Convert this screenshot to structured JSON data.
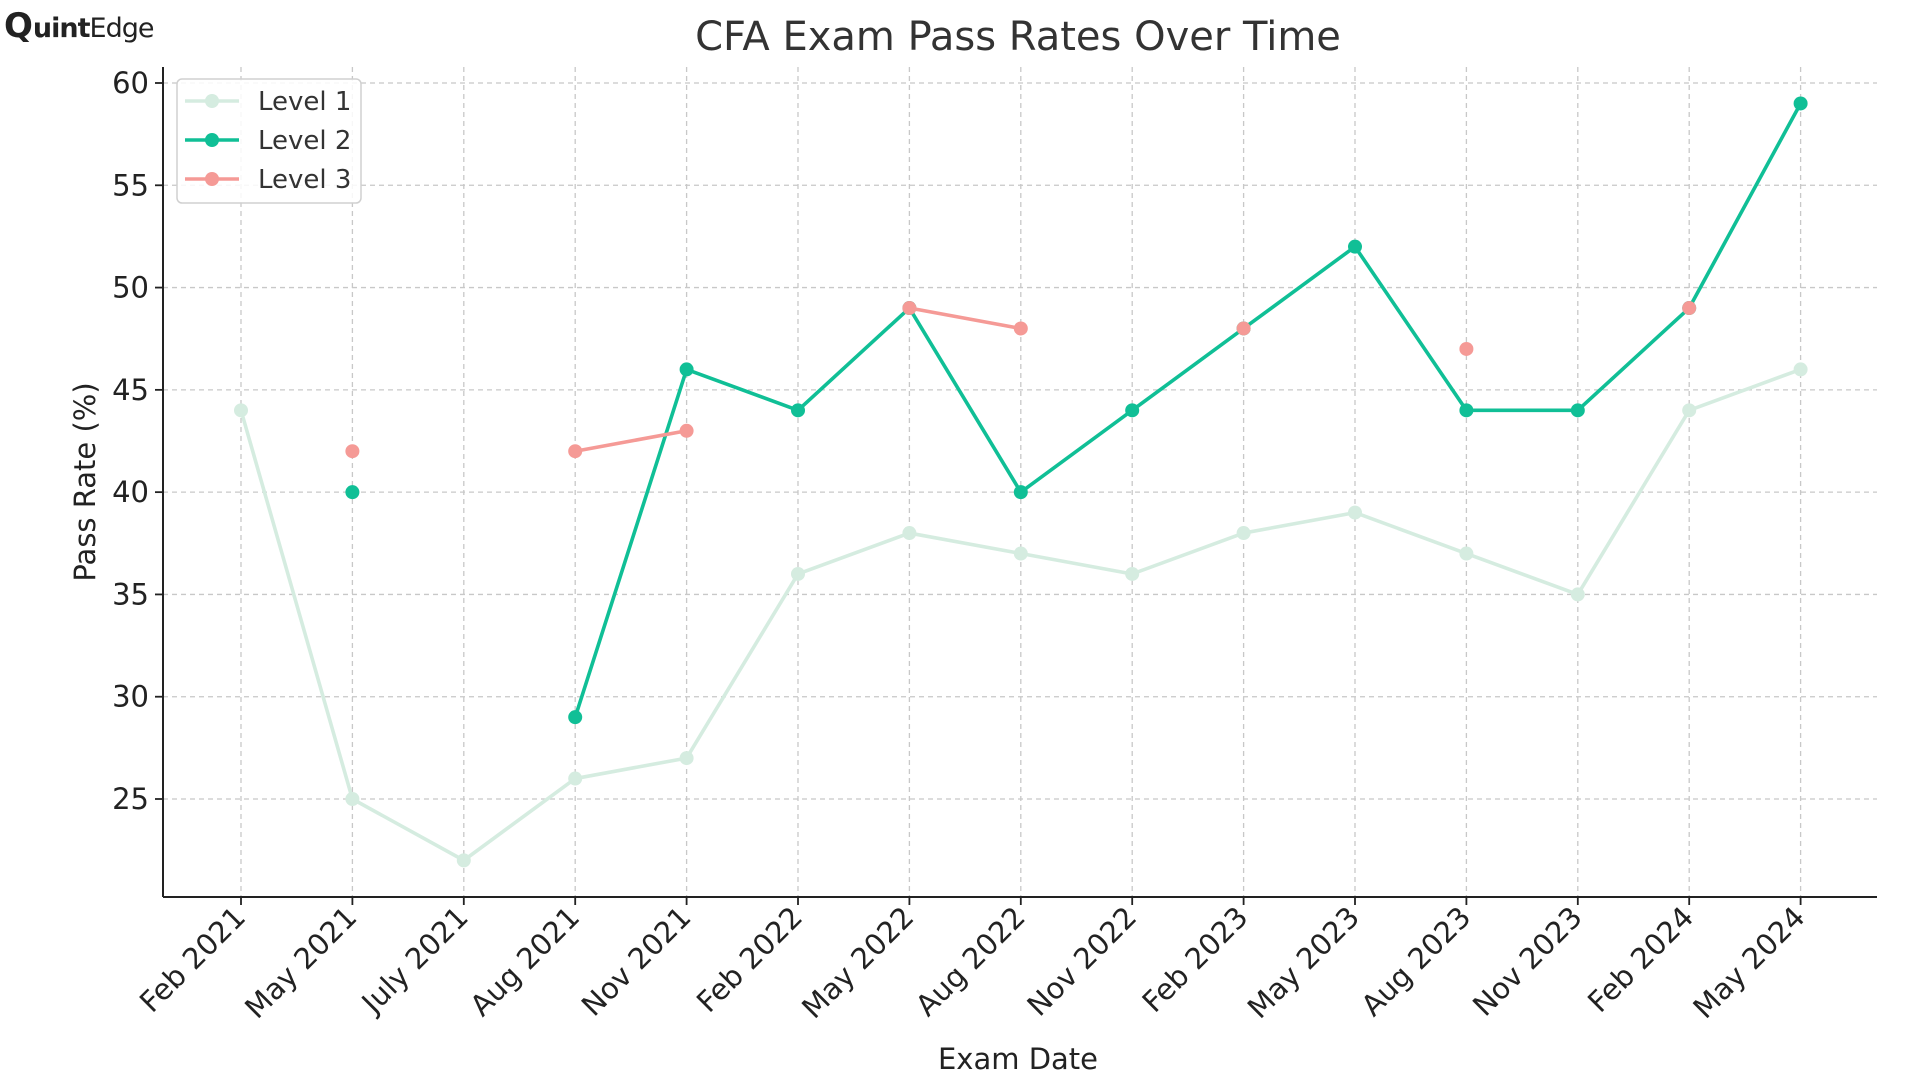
{
  "brand": {
    "logo_text_q": "Q",
    "logo_text_uint": "uint",
    "logo_text_edge": "Edge"
  },
  "chart_data": {
    "type": "line",
    "title": "CFA Exam Pass Rates Over Time",
    "xlabel": "Exam Date",
    "ylabel": "Pass Rate (%)",
    "categories": [
      "Feb 2021",
      "May 2021",
      "July 2021",
      "Aug 2021",
      "Nov 2021",
      "Feb 2022",
      "May 2022",
      "Aug 2022",
      "Nov 2022",
      "Feb 2023",
      "May 2023",
      "Aug 2023",
      "Nov 2023",
      "Feb 2024",
      "May 2024"
    ],
    "yticks": [
      25,
      30,
      35,
      40,
      45,
      50,
      55,
      60
    ],
    "ylim": [
      20.3,
      61
    ],
    "grid": true,
    "legend_position": "top-left",
    "series": [
      {
        "name": "Level 1",
        "color": "#d5ece0",
        "values": [
          44,
          25,
          22,
          26,
          27,
          36,
          38,
          37,
          36,
          38,
          39,
          37,
          35,
          44,
          46
        ]
      },
      {
        "name": "Level 2",
        "color": "#10bf96",
        "values": [
          null,
          40,
          null,
          29,
          46,
          44,
          49,
          40,
          44,
          48,
          52,
          44,
          44,
          49,
          59
        ]
      },
      {
        "name": "Level 3",
        "color": "#f59a96",
        "values": [
          null,
          42,
          null,
          42,
          43,
          null,
          49,
          48,
          null,
          48,
          null,
          47,
          null,
          49,
          null
        ]
      }
    ]
  }
}
